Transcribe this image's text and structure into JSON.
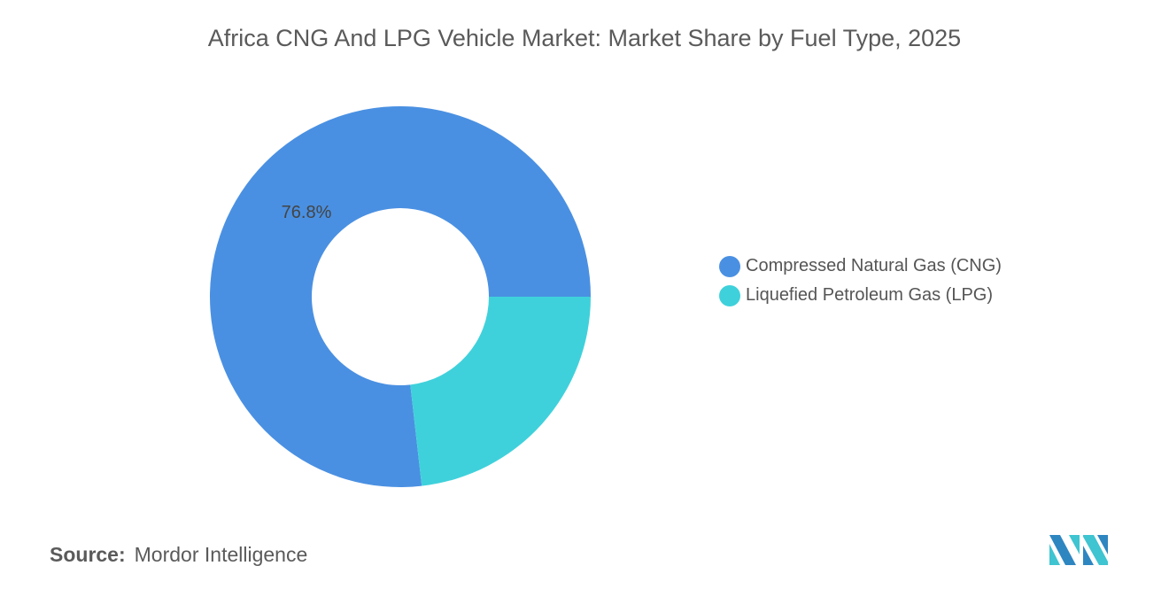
{
  "chart_data": {
    "type": "pie",
    "variant": "donut",
    "title": "Africa CNG And LPG Vehicle Market: Market Share by Fuel Type, 2025",
    "categories": [
      "Compressed Natural Gas (CNG)",
      "Liquefied Petroleum Gas (LPG)"
    ],
    "values": [
      76.8,
      23.2
    ],
    "colors": [
      "#4a90e2",
      "#3fd1db"
    ],
    "data_labels": [
      "76.8%",
      ""
    ],
    "legend_position": "right"
  },
  "source": {
    "label": "Source:",
    "text": "Mordor Intelligence"
  },
  "logo": {
    "name": "mordor-intelligence-logo",
    "colors": [
      "#2e86c1",
      "#3fc4d1"
    ]
  }
}
